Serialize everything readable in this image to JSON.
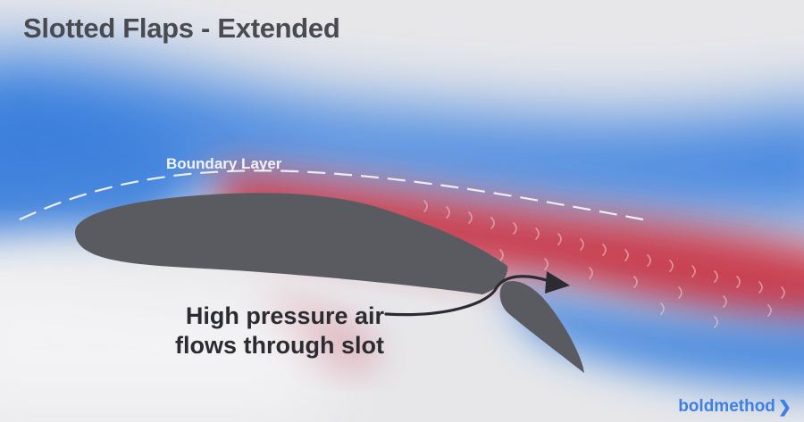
{
  "title": "Slotted Flaps - Extended",
  "labels": {
    "boundary_layer": "Boundary Layer",
    "callout_line1": "High pressure air",
    "callout_line2": "flows through slot"
  },
  "brand": {
    "name": "boldmethod",
    "icon": "chevron-right-icon"
  },
  "colors": {
    "low_pressure": "#c8374a",
    "flow_blue": "#3d82df",
    "airfoil": "#5a5b61",
    "text_dark": "#2b2c31",
    "brand": "#3f7fe0"
  }
}
